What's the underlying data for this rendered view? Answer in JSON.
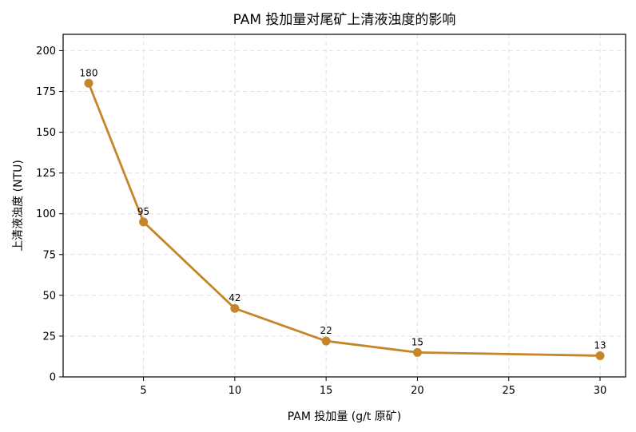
{
  "chart_data": {
    "type": "line",
    "title": "PAM 投加量对尾矿上清液浊度的影响",
    "xlabel": "PAM 投加量 (g/t 原矿)",
    "ylabel": "上清液浊度 (NTU)",
    "x": [
      2,
      5,
      10,
      15,
      20,
      30
    ],
    "series": [
      {
        "name": "",
        "values": [
          180,
          95,
          42,
          22,
          15,
          13
        ],
        "color": "#c5862a"
      }
    ],
    "data_labels": [
      "180",
      "95",
      "42",
      "22",
      "15",
      "13"
    ],
    "xlim": [
      0.6,
      31.4
    ],
    "ylim": [
      0,
      210
    ],
    "xticks": [
      5,
      10,
      15,
      20,
      25,
      30
    ],
    "yticks": [
      0,
      25,
      50,
      75,
      100,
      125,
      150,
      175,
      200
    ],
    "grid": true,
    "grid_style": "dashed"
  }
}
